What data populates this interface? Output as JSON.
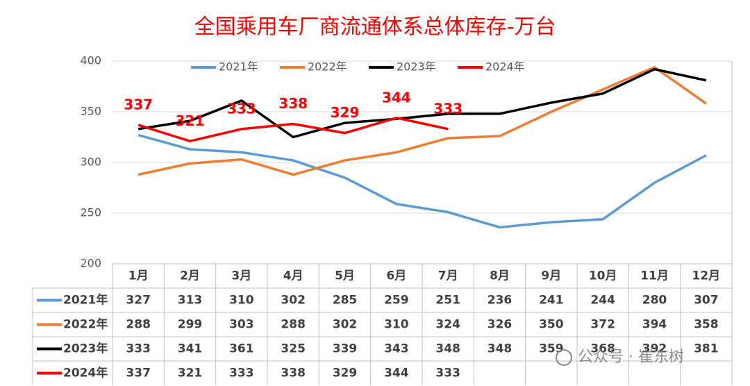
{
  "chart_data": {
    "type": "line",
    "title": "全国乘用车厂商流通体系总体库存-万台",
    "categories": [
      "1月",
      "2月",
      "3月",
      "4月",
      "5月",
      "6月",
      "7月",
      "8月",
      "9月",
      "10月",
      "11月",
      "12月"
    ],
    "series": [
      {
        "name": "2021年",
        "color": "#5b9bd5",
        "values": [
          327,
          313,
          310,
          302,
          285,
          259,
          251,
          236,
          241,
          244,
          280,
          307
        ]
      },
      {
        "name": "2022年",
        "color": "#ed7d31",
        "values": [
          288,
          299,
          303,
          288,
          302,
          310,
          324,
          326,
          350,
          372,
          394,
          358
        ]
      },
      {
        "name": "2023年",
        "color": "#000000",
        "values": [
          333,
          341,
          361,
          325,
          339,
          343,
          348,
          348,
          359,
          368,
          392,
          381
        ]
      },
      {
        "name": "2024年",
        "color": "#ff0000",
        "values": [
          337,
          321,
          333,
          338,
          329,
          344,
          333,
          null,
          null,
          null,
          null,
          null
        ],
        "data_labels": true
      }
    ],
    "ylim": [
      200,
      400
    ],
    "yticks": [
      200,
      250,
      300,
      350,
      400
    ],
    "grid": true,
    "legend": "top",
    "watermark": "公众号 · 崔东树"
  }
}
